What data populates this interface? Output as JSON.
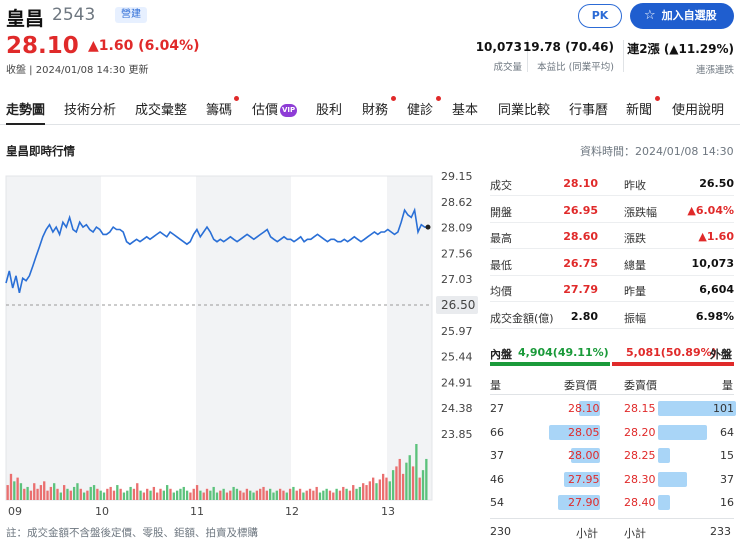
{
  "header": {
    "name": "皇昌",
    "code": "2543",
    "market": "營建",
    "price": "28.10",
    "change": "▲1.60 (6.04%)",
    "meta": "收盤 | 2024/01/08 14:30 更新",
    "pk_label": "PK",
    "watch_label": "加入自選股",
    "stats": [
      {
        "value": "10,073",
        "label": "成交量"
      },
      {
        "value": "19.78 (70.46)",
        "label": "本益比 (同業平均)"
      },
      {
        "value_prefix": "連2漲",
        "value": "(▲11.29%)",
        "label": "連漲連跌"
      }
    ]
  },
  "tabs": [
    "走勢圖",
    "技術分析",
    "成交彙整",
    "籌碼",
    "估價",
    "股利",
    "財務",
    "健診",
    "基本",
    "同業比較",
    "行事曆",
    "新聞",
    "使用說明"
  ],
  "vip_label": "VIP",
  "section_title": "皇昌即時行情",
  "data_time": "資料時間：2024/01/08 14:30",
  "chart_data": {
    "type": "line",
    "x_ticks": [
      "09",
      "10",
      "11",
      "12",
      "13"
    ],
    "y_ticks": [
      "29.15",
      "28.62",
      "28.09",
      "27.56",
      "27.03",
      "26.50",
      "25.97",
      "25.44",
      "24.91",
      "24.38",
      "23.85"
    ],
    "ylim": [
      23.85,
      29.15
    ],
    "reference_price": "26.50",
    "prices": [
      26.95,
      27.2,
      26.85,
      27.1,
      26.75,
      27.05,
      27.0,
      27.1,
      27.3,
      27.5,
      27.7,
      27.9,
      28.05,
      28.15,
      28.0,
      28.1,
      27.95,
      28.2,
      28.1,
      28.3,
      28.05,
      28.0,
      28.2,
      28.1,
      28.15,
      28.05,
      28.0,
      28.1,
      28.05,
      27.95,
      27.95,
      28.0,
      28.1,
      28.05,
      28.05,
      28.0,
      27.8,
      27.75,
      27.8,
      27.85,
      27.8,
      27.85,
      27.9,
      27.85,
      27.9,
      27.95,
      28.0,
      27.95,
      27.9,
      28.0,
      27.95,
      27.9,
      27.85,
      27.8,
      27.75,
      27.8,
      27.95,
      28.05,
      27.9,
      28.0,
      28.1,
      28.0,
      27.85,
      27.8,
      27.85,
      27.8,
      27.85,
      27.9,
      27.85,
      27.8,
      27.85,
      27.9,
      27.95,
      27.9,
      27.85,
      27.9,
      27.95,
      28.0,
      28.05,
      27.9,
      27.85,
      27.8,
      27.85,
      27.9,
      27.85,
      27.85,
      27.8,
      27.85,
      27.9,
      27.8,
      27.85,
      27.85,
      27.9,
      27.95,
      27.9,
      27.85,
      27.8,
      27.85,
      27.85,
      27.8,
      27.8,
      27.85,
      27.8,
      27.85,
      27.9,
      27.85,
      27.8,
      27.85,
      27.9,
      27.95,
      28.0,
      27.95,
      28.0,
      28.0,
      28.05,
      28.0,
      27.95,
      28.0,
      28.2,
      28.45,
      28.35,
      28.3,
      28.45,
      28.0,
      28.15,
      28.1,
      28.1
    ],
    "volumes": [
      8,
      14,
      10,
      12,
      9,
      6,
      7,
      5,
      9,
      6,
      8,
      10,
      5,
      7,
      9,
      6,
      4,
      8,
      6,
      5,
      7,
      9,
      6,
      4,
      5,
      7,
      8,
      6,
      5,
      4,
      6,
      7,
      5,
      8,
      6,
      4,
      5,
      7,
      6,
      9,
      5,
      4,
      6,
      5,
      7,
      4,
      6,
      5,
      8,
      6,
      4,
      5,
      6,
      7,
      5,
      4,
      6,
      8,
      5,
      4,
      6,
      5,
      7,
      4,
      5,
      6,
      4,
      5,
      7,
      6,
      5,
      4,
      6,
      5,
      4,
      5,
      6,
      7,
      5,
      6,
      4,
      5,
      6,
      5,
      4,
      6,
      7,
      5,
      6,
      4,
      5,
      6,
      5,
      7,
      4,
      5,
      6,
      5,
      4,
      6,
      5,
      7,
      6,
      5,
      8,
      6,
      7,
      9,
      8,
      10,
      12,
      9,
      11,
      14,
      12,
      10,
      16,
      18,
      22,
      14,
      20,
      24,
      18,
      30,
      12,
      16,
      22
    ],
    "volume_up": [
      1,
      1,
      0,
      1,
      0,
      1,
      0,
      1,
      1,
      1,
      1,
      1,
      1,
      1,
      0,
      1,
      0,
      1,
      0,
      1,
      0,
      0,
      1,
      0,
      1,
      0,
      0,
      1,
      0,
      0,
      1,
      1,
      1,
      0,
      1,
      0,
      0,
      0,
      1,
      1,
      0,
      1,
      1,
      0,
      1,
      1,
      1,
      0,
      0,
      1,
      0,
      0,
      0,
      0,
      0,
      1,
      1,
      1,
      0,
      1,
      1,
      0,
      0,
      0,
      1,
      0,
      1,
      1,
      0,
      0,
      1,
      1,
      1,
      0,
      0,
      1,
      1,
      1,
      1,
      0,
      0,
      0,
      1,
      1,
      0,
      1,
      0,
      1,
      1,
      0,
      1,
      1,
      1,
      1,
      0,
      0,
      0,
      1,
      1,
      0,
      1,
      1,
      0,
      1,
      1,
      0,
      0,
      1,
      1,
      1,
      1,
      0,
      1,
      1,
      1,
      0,
      0,
      1,
      1,
      1,
      0,
      0,
      1,
      0,
      1,
      0,
      0
    ]
  },
  "quote": {
    "rows": [
      {
        "l1": "成交",
        "v1": "28.10",
        "c1": "red",
        "l2": "昨收",
        "v2": "26.50",
        "c2": "dark"
      },
      {
        "l1": "開盤",
        "v1": "26.95",
        "c1": "red",
        "l2": "漲跌幅",
        "v2": "▲6.04%",
        "c2": "red"
      },
      {
        "l1": "最高",
        "v1": "28.60",
        "c1": "red",
        "l2": "漲跌",
        "v2": "▲1.60",
        "c2": "red"
      },
      {
        "l1": "最低",
        "v1": "26.75",
        "c1": "red",
        "l2": "總量",
        "v2": "10,073",
        "c2": "dark"
      },
      {
        "l1": "均價",
        "v1": "27.79",
        "c1": "red",
        "l2": "昨量",
        "v2": "6,604",
        "c2": "dark"
      },
      {
        "l1": "成交金額(億)",
        "v1": "2.80",
        "c1": "dark",
        "l2": "振幅",
        "v2": "6.98%",
        "c2": "dark"
      }
    ]
  },
  "inout": {
    "in_label": "內盤",
    "in_value": "4,904(49.11%)",
    "out_value": "5,081(50.89%)",
    "out_label": "外盤",
    "in_ratio": 0.4911
  },
  "orderbook": {
    "qty_header": "量",
    "bid_header": "委買價",
    "ask_header": "委賣價",
    "qty_header2": "量",
    "bids": [
      {
        "qty": "27",
        "price": "28.10"
      },
      {
        "qty": "66",
        "price": "28.05"
      },
      {
        "qty": "37",
        "price": "28.00"
      },
      {
        "qty": "46",
        "price": "27.95"
      },
      {
        "qty": "54",
        "price": "27.90"
      }
    ],
    "asks": [
      {
        "price": "28.15",
        "qty": "101"
      },
      {
        "price": "28.20",
        "qty": "64"
      },
      {
        "price": "28.25",
        "qty": "15"
      },
      {
        "price": "28.30",
        "qty": "37"
      },
      {
        "price": "28.40",
        "qty": "16"
      }
    ],
    "bid_total": "230",
    "subtotal_label": "小計",
    "subtotal_label2": "小計",
    "ask_total": "233"
  },
  "note": "註：成交金額不含盤後定價、零股、鉅額、拍賣及標購"
}
